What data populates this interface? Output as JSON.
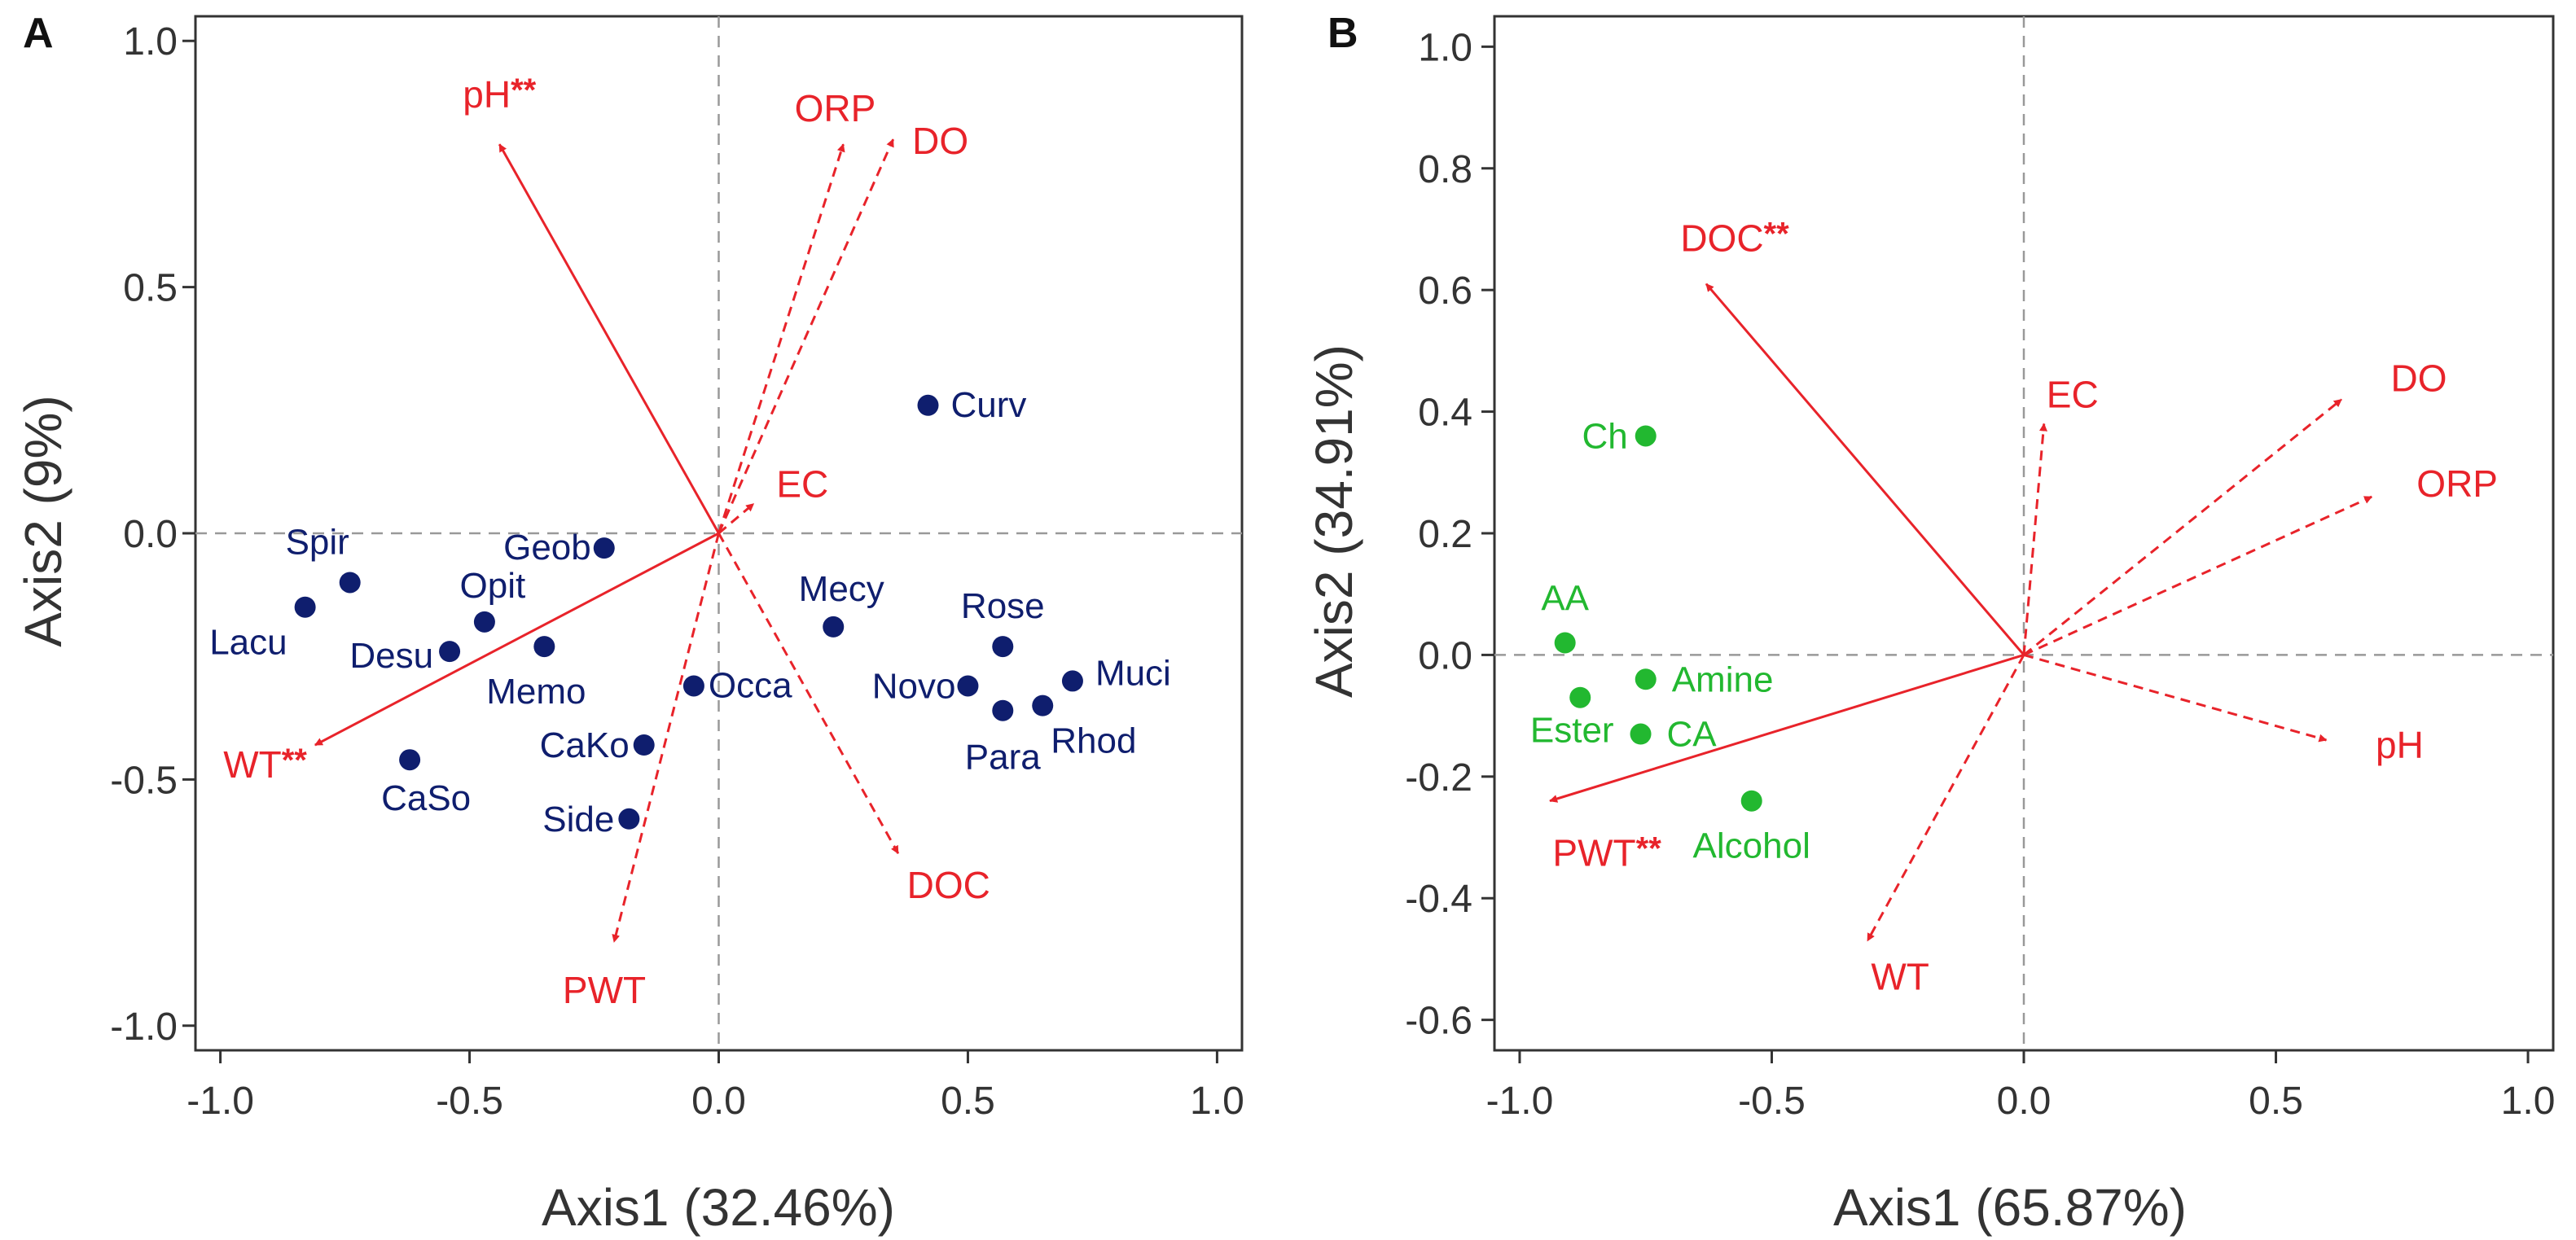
{
  "colors": {
    "vector": "#e8232a",
    "species": "#0f1e6e",
    "compound": "#22b830",
    "axis": "#333333",
    "refline": "#999999"
  },
  "chart_data": [
    {
      "type": "scatter",
      "subtype": "rda-biplot",
      "panel": "A",
      "xlabel": "Axis1 (32.46%)",
      "ylabel": "Axis2 (9%)",
      "xlim": [
        -1.05,
        1.05
      ],
      "ylim": [
        -1.05,
        1.05
      ],
      "xticks": [
        -1.0,
        -0.5,
        0.0,
        0.5,
        1.0
      ],
      "yticks": [
        -1.0,
        -0.5,
        0.0,
        0.5,
        1.0
      ],
      "xtick_labels": [
        "-1.0",
        "-0.5",
        "0.0",
        "0.5",
        "1.0"
      ],
      "ytick_labels": [
        "-1.0",
        "-0.5",
        "0.0",
        "0.5",
        "1.0"
      ],
      "vectors": [
        {
          "name": "pH",
          "sig": "**",
          "x": -0.44,
          "y": 0.79,
          "style": "solid"
        },
        {
          "name": "WT",
          "sig": "**",
          "x": -0.81,
          "y": -0.43,
          "style": "solid"
        },
        {
          "name": "ORP",
          "sig": "",
          "x": 0.25,
          "y": 0.79,
          "style": "dashed"
        },
        {
          "name": "DO",
          "sig": "",
          "x": 0.35,
          "y": 0.8,
          "style": "dashed"
        },
        {
          "name": "EC",
          "sig": "",
          "x": 0.07,
          "y": 0.06,
          "style": "dashed"
        },
        {
          "name": "DOC",
          "sig": "",
          "x": 0.36,
          "y": -0.65,
          "style": "dashed"
        },
        {
          "name": "PWT",
          "sig": "",
          "x": -0.21,
          "y": -0.83,
          "style": "dashed"
        }
      ],
      "points": [
        {
          "label": "Curv",
          "x": 0.42,
          "y": 0.26
        },
        {
          "label": "Geob",
          "x": -0.23,
          "y": -0.03
        },
        {
          "label": "Spir",
          "x": -0.74,
          "y": -0.1
        },
        {
          "label": "Lacu",
          "x": -0.83,
          "y": -0.15
        },
        {
          "label": "Opit",
          "x": -0.47,
          "y": -0.18
        },
        {
          "label": "Desu",
          "x": -0.54,
          "y": -0.24
        },
        {
          "label": "Memo",
          "x": -0.35,
          "y": -0.23
        },
        {
          "label": "Occa",
          "x": -0.05,
          "y": -0.31
        },
        {
          "label": "Mecy",
          "x": 0.23,
          "y": -0.19
        },
        {
          "label": "Rose",
          "x": 0.57,
          "y": -0.23
        },
        {
          "label": "Novo",
          "x": 0.5,
          "y": -0.31
        },
        {
          "label": "Muci",
          "x": 0.71,
          "y": -0.3
        },
        {
          "label": "Para",
          "x": 0.57,
          "y": -0.36
        },
        {
          "label": "Rhod",
          "x": 0.65,
          "y": -0.35
        },
        {
          "label": "CaKo",
          "x": -0.15,
          "y": -0.43
        },
        {
          "label": "CaSo",
          "x": -0.62,
          "y": -0.46
        },
        {
          "label": "Side",
          "x": -0.18,
          "y": -0.58
        }
      ]
    },
    {
      "type": "scatter",
      "subtype": "rda-biplot",
      "panel": "B",
      "xlabel": "Axis1 (65.87%)",
      "ylabel": "Axis2 (34.91%)",
      "xlim": [
        -1.05,
        1.05
      ],
      "ylim": [
        -0.65,
        1.05
      ],
      "xticks": [
        -1.0,
        -0.5,
        0.0,
        0.5,
        1.0
      ],
      "yticks": [
        -0.6,
        -0.4,
        -0.2,
        0.0,
        0.2,
        0.4,
        0.6,
        0.8,
        1.0
      ],
      "xtick_labels": [
        "-1.0",
        "-0.5",
        "0.0",
        "0.5",
        "1.0"
      ],
      "ytick_labels": [
        "-0.6",
        "-0.4",
        "-0.2",
        "0.0",
        "0.2",
        "0.4",
        "0.6",
        "0.8",
        "1.0"
      ],
      "vectors": [
        {
          "name": "DOC",
          "sig": "**",
          "x": -0.63,
          "y": 0.61,
          "style": "solid"
        },
        {
          "name": "PWT",
          "sig": "**",
          "x": -0.94,
          "y": -0.24,
          "style": "solid"
        },
        {
          "name": "EC",
          "sig": "",
          "x": 0.04,
          "y": 0.38,
          "style": "dashed"
        },
        {
          "name": "DO",
          "sig": "",
          "x": 0.63,
          "y": 0.42,
          "style": "dashed"
        },
        {
          "name": "ORP",
          "sig": "",
          "x": 0.69,
          "y": 0.26,
          "style": "dashed"
        },
        {
          "name": "pH",
          "sig": "",
          "x": 0.6,
          "y": -0.14,
          "style": "dashed"
        },
        {
          "name": "WT",
          "sig": "",
          "x": -0.31,
          "y": -0.47,
          "style": "dashed"
        }
      ],
      "points": [
        {
          "label": "Ch",
          "x": -0.75,
          "y": 0.36
        },
        {
          "label": "AA",
          "x": -0.91,
          "y": 0.02
        },
        {
          "label": "Amine",
          "x": -0.75,
          "y": -0.04
        },
        {
          "label": "Ester",
          "x": -0.88,
          "y": -0.07
        },
        {
          "label": "CA",
          "x": -0.76,
          "y": -0.13
        },
        {
          "label": "Alcohol",
          "x": -0.54,
          "y": -0.24
        }
      ]
    }
  ]
}
